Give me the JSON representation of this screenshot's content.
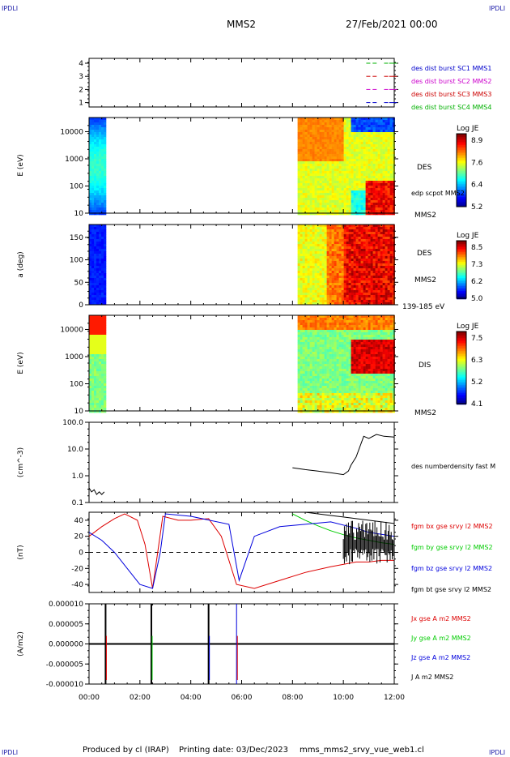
{
  "header": {
    "corner_left": "IPDLI",
    "corner_right": "IPDLI",
    "spacecraft": "MMS2",
    "datetime": "27/Feb/2021 00:00"
  },
  "footer": {
    "credit": "Produced by cl (IRAP)",
    "printing": "Printing date: 03/Dec/2023",
    "program": "mms_mms2_srvy_vue_web1.cl",
    "corner_left": "IPDLI",
    "corner_right": "IPDLI"
  },
  "colors": {
    "mms1": "#0000cc",
    "mms2": "#cc00cc",
    "mms3": "#cc0000",
    "mms4": "#00b000",
    "bx": "#dd0000",
    "by": "#00cc00",
    "bz": "#0000dd",
    "bt": "#000000"
  },
  "chart_data": [
    {
      "type": "scatter",
      "panel": "burst-availability",
      "yticks": [
        "1",
        "2",
        "3",
        "4"
      ],
      "legend": [
        {
          "label": "des dist burst SC1 MMS1",
          "color": "#0000cc"
        },
        {
          "label": "des dist burst SC2 MMS2",
          "color": "#cc00cc"
        },
        {
          "label": "des dist burst SC3 MMS3",
          "color": "#cc0000"
        },
        {
          "label": "des dist burst SC4 MMS4",
          "color": "#00b000"
        }
      ],
      "burst_times_hours": [
        10.9,
        11.15,
        11.6,
        11.8,
        11.95
      ]
    },
    {
      "type": "heatmap",
      "panel": "des-energy",
      "ylabel": "E (eV)",
      "yscale": "log",
      "yticks": [
        "10",
        "100",
        "1000",
        "10000"
      ],
      "side_labels": [
        "DES",
        "edp scpot MMS2",
        "MMS2"
      ],
      "colorbar": {
        "title": "Log JE",
        "ticks": [
          "8.9",
          "7.6",
          "6.4",
          "5.2"
        ]
      },
      "data_intervals_hours": [
        [
          0.0,
          0.65
        ],
        [
          8.2,
          12.0
        ]
      ]
    },
    {
      "type": "heatmap",
      "panel": "des-pitch-angle",
      "ylabel": "a (deg)",
      "yticks": [
        "0",
        "50",
        "100",
        "150"
      ],
      "side_labels": [
        "DES",
        "MMS2",
        "139-185 eV"
      ],
      "colorbar": {
        "title": "Log JE",
        "ticks": [
          "8.5",
          "7.3",
          "6.2",
          "5.0"
        ]
      },
      "data_intervals_hours": [
        [
          0.0,
          0.65
        ],
        [
          8.2,
          12.0
        ]
      ]
    },
    {
      "type": "heatmap",
      "panel": "dis-energy",
      "ylabel": "E (eV)",
      "yscale": "log",
      "yticks": [
        "10",
        "100",
        "1000",
        "10000"
      ],
      "side_labels": [
        "DIS",
        "MMS2"
      ],
      "colorbar": {
        "title": "Log JE",
        "ticks": [
          "7.5",
          "6.3",
          "5.2",
          "4.1"
        ]
      },
      "data_intervals_hours": [
        [
          0.0,
          0.65
        ],
        [
          8.2,
          12.0
        ]
      ]
    },
    {
      "type": "line",
      "panel": "density",
      "ylabel": "(cm^-3)",
      "yscale": "log",
      "yticks": [
        "0.1",
        "1.0",
        "10.0",
        "100.0"
      ],
      "ylim": [
        0.1,
        100
      ],
      "series": [
        {
          "name": "des numberdensity fast M",
          "color": "#000000",
          "x": [
            0.0,
            0.1,
            0.2,
            0.3,
            0.4,
            0.5,
            0.6,
            8.0,
            8.5,
            9.0,
            9.5,
            10.0,
            10.2,
            10.3,
            10.5,
            10.8,
            11.0,
            11.3,
            11.6,
            12.0
          ],
          "y": [
            0.35,
            0.25,
            0.3,
            0.2,
            0.25,
            0.2,
            0.25,
            2.0,
            1.7,
            1.5,
            1.3,
            1.1,
            1.5,
            2.5,
            5,
            30,
            25,
            35,
            30,
            28
          ]
        }
      ]
    },
    {
      "type": "line",
      "panel": "magnetic-field",
      "ylabel": "(nT)",
      "yticks": [
        "-40",
        "-20",
        "0",
        "20",
        "40"
      ],
      "ylim": [
        -50,
        50
      ],
      "series": [
        {
          "name": "fgm bx gse srvy l2 MMS2",
          "color": "#dd0000",
          "x": [
            0.0,
            0.5,
            1.0,
            1.4,
            1.9,
            2.2,
            2.5,
            2.9,
            3.5,
            4.0,
            4.7,
            5.2,
            5.8,
            6.5,
            7.5,
            8.5,
            9.5,
            10.5,
            11.0,
            11.5,
            12.0
          ],
          "y": [
            20,
            32,
            42,
            48,
            40,
            10,
            -45,
            45,
            40,
            40,
            42,
            20,
            -40,
            -45,
            -35,
            -25,
            -18,
            -12,
            -12,
            -10,
            -10
          ]
        },
        {
          "name": "fgm by gse srvy l2 MMS2",
          "color": "#00cc00",
          "x": [
            8.0,
            8.5,
            9.0,
            9.5,
            10.0,
            10.5,
            11.0,
            11.5,
            12.0
          ],
          "y": [
            48,
            40,
            33,
            27,
            22,
            18,
            15,
            12,
            10
          ]
        },
        {
          "name": "fgm bz gse srvy l2 MMS2",
          "color": "#0000dd",
          "x": [
            0.0,
            0.5,
            1.0,
            1.5,
            2.0,
            2.5,
            2.8,
            3.0,
            4.0,
            5.5,
            5.9,
            6.5,
            7.5,
            8.5,
            9.5,
            10.5,
            11.0,
            12.0
          ],
          "y": [
            25,
            15,
            0,
            -20,
            -40,
            -45,
            0,
            48,
            45,
            35,
            -35,
            20,
            32,
            35,
            38,
            30,
            25,
            20
          ]
        },
        {
          "name": "fgm bt gse srvy l2 MMS2",
          "color": "#000000",
          "x": [
            8.2,
            8.5,
            9.0,
            9.5,
            10.0,
            10.5,
            11.0,
            11.5,
            12.0
          ],
          "y": [
            52,
            50,
            48,
            46,
            44,
            42,
            40,
            38,
            36
          ]
        }
      ]
    },
    {
      "type": "line",
      "panel": "current-density",
      "ylabel": "(A/m2)",
      "yticks": [
        "-0.000010",
        "-0.000005",
        "0.000000",
        "0.000005",
        "0.000010"
      ],
      "ylim": [
        -1e-05,
        1e-05
      ],
      "xlabel": "",
      "xticks": [
        "00:00",
        "02:00",
        "04:00",
        "06:00",
        "08:00",
        "10:00",
        "12:00"
      ],
      "xlim_hours": [
        0,
        12
      ],
      "series": [
        {
          "name": "Jx gse A m2 MMS2",
          "color": "#dd0000"
        },
        {
          "name": "Jy gse A m2 MMS2",
          "color": "#00cc00"
        },
        {
          "name": "Jz gse A m2 MMS2",
          "color": "#0000dd"
        },
        {
          "name": "J A m2 MMS2",
          "color": "#000000"
        }
      ],
      "spikes_hours": [
        0.65,
        2.45,
        4.7,
        5.8
      ]
    }
  ]
}
